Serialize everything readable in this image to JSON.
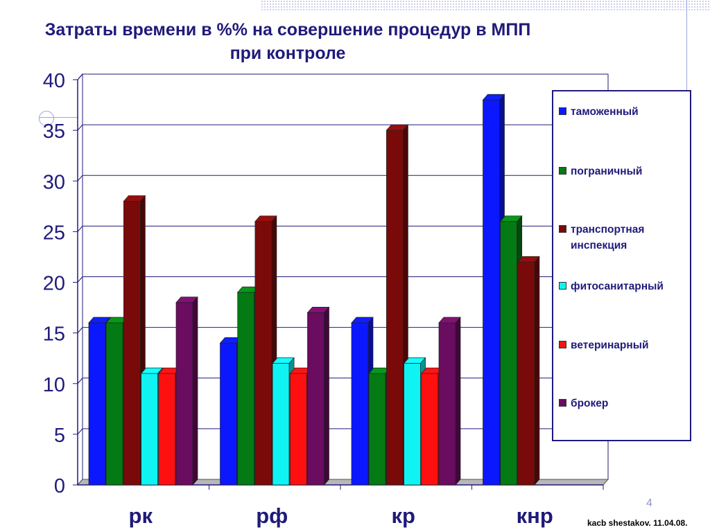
{
  "title_line1": "Затраты времени в %% на совершение процедур в МПП",
  "title_line2": "при контроле",
  "slide_number": "4",
  "footer": "kacb shestakov. 11.04.08.",
  "chart_data": {
    "type": "bar",
    "title": "Затраты времени в %% на совершение процедур в МПП при контроле",
    "categories": [
      "рк",
      "рф",
      "кр",
      "кнр"
    ],
    "ylim": [
      0,
      40
    ],
    "yticks": [
      0,
      5,
      10,
      15,
      20,
      25,
      30,
      35,
      40
    ],
    "grid": true,
    "legend_position": "right",
    "series": [
      {
        "name": "таможенный",
        "color": "#0b18ff",
        "values": [
          16,
          14,
          16,
          38
        ]
      },
      {
        "name": "пограничный",
        "color": "#047a14",
        "values": [
          16,
          19,
          11,
          26
        ]
      },
      {
        "name": "транспортная инспекция",
        "color": "#7a0a0a",
        "values": [
          28,
          26,
          35,
          22
        ]
      },
      {
        "name": "фитосанитарный",
        "color": "#10f3f3",
        "values": [
          11,
          12,
          12,
          0
        ]
      },
      {
        "name": "ветеринарный",
        "color": "#ff1010",
        "values": [
          11,
          11,
          11,
          0
        ]
      },
      {
        "name": "брокер",
        "color": "#6a0c60",
        "values": [
          18,
          17,
          16,
          0
        ]
      }
    ]
  }
}
